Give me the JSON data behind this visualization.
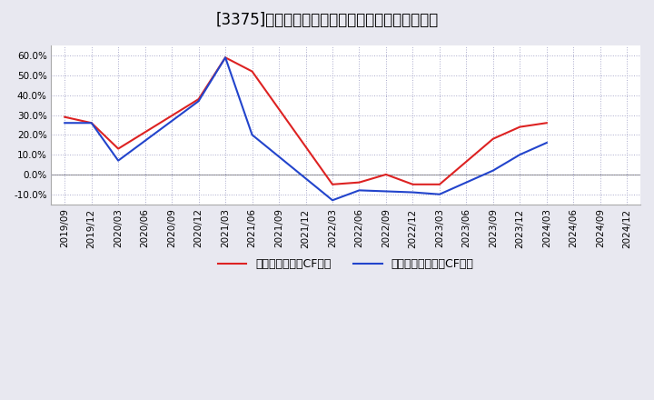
{
  "title": "[3375]　有利子負債キャッシュフロー比率の推移",
  "x_labels": [
    "2019/09",
    "2019/12",
    "2020/03",
    "2020/06",
    "2020/09",
    "2020/12",
    "2021/03",
    "2021/06",
    "2021/09",
    "2021/12",
    "2022/03",
    "2022/06",
    "2022/09",
    "2022/12",
    "2023/03",
    "2023/06",
    "2023/09",
    "2023/12",
    "2024/03",
    "2024/06",
    "2024/09",
    "2024/12"
  ],
  "red_values": [
    0.29,
    0.26,
    0.13,
    null,
    null,
    0.38,
    0.59,
    0.52,
    null,
    null,
    -0.05,
    -0.04,
    0.0,
    -0.05,
    -0.05,
    null,
    0.18,
    0.24,
    0.26,
    null,
    null,
    null
  ],
  "blue_values": [
    0.26,
    0.26,
    0.07,
    null,
    null,
    0.37,
    0.59,
    0.2,
    null,
    null,
    -0.13,
    -0.08,
    -0.085,
    -0.09,
    -0.1,
    null,
    0.02,
    0.1,
    0.16,
    null,
    null,
    null
  ],
  "red_color": "#dd2222",
  "blue_color": "#2244cc",
  "bg_color": "#e8e8f0",
  "plot_bg_color": "#ffffff",
  "grid_color": "#aaaacc",
  "ylim": [
    -0.15,
    0.65
  ],
  "yticks": [
    -0.1,
    0.0,
    0.1,
    0.2,
    0.3,
    0.4,
    0.5,
    0.6
  ],
  "legend_red": "有利子負債営業CF比率",
  "legend_blue": "有利子負債フリーCF比率",
  "title_fontsize": 12,
  "axis_fontsize": 7.5,
  "legend_fontsize": 9
}
